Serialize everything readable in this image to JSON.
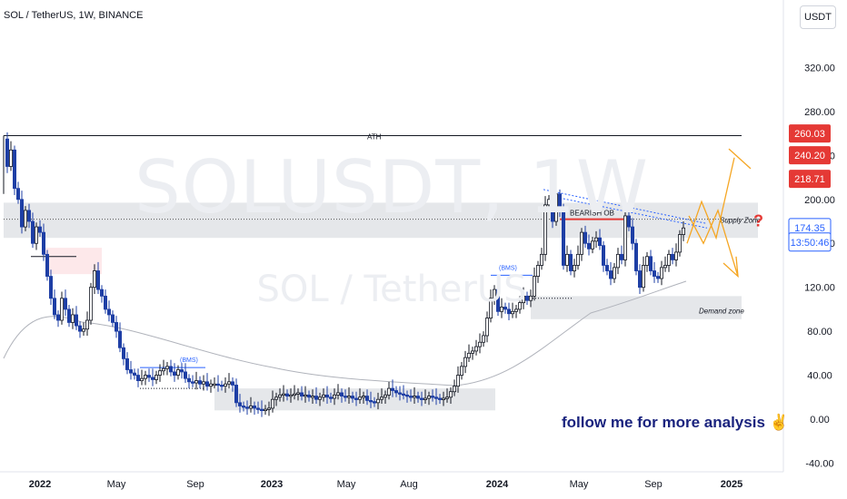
{
  "header": {
    "title": "SOL / TetherUS, 1W, BINANCE"
  },
  "watermark": {
    "symbol": "SOLUSDT, 1W",
    "pair": "SOL / TetherUS"
  },
  "currency_button": "USDT",
  "follow_text": "follow me for more analysis ✌",
  "colors": {
    "up": "#131722",
    "down": "#1e3fa5",
    "zone": "#dcdfe3",
    "arrow": "#f5a623",
    "red": "#e53935",
    "blue_label": "#2962ff"
  },
  "chart_data": {
    "type": "candlestick",
    "title": "SOL / TetherUS, 1W, BINANCE",
    "ylim": [
      -40,
      340
    ],
    "y_ticks": [
      -40,
      0,
      40,
      80,
      120,
      160,
      200,
      240,
      280,
      320
    ],
    "y_tick_labels": [
      "-40.00",
      "0.00",
      "40.00",
      "80.00",
      "120.00",
      "160.00",
      "200.00",
      "240.00",
      "280.00",
      "320.00"
    ],
    "x_tick_labels": [
      "2022",
      "May",
      "Sep",
      "2023",
      "May",
      "Aug",
      "2024",
      "May",
      "Sep",
      "2025"
    ],
    "price_labels": [
      {
        "text": "260.03",
        "value": 260.03,
        "bg": "#e53935"
      },
      {
        "text": "240.20",
        "value": 240.2,
        "bg": "#e53935"
      },
      {
        "text": "218.71",
        "value": 218.71,
        "bg": "#e53935"
      },
      {
        "text": "174.35",
        "value": 174.35,
        "bg": "#2962ff",
        "outline": true
      },
      {
        "text": "13:50:46",
        "value": 161.2,
        "bg": "#2962ff",
        "outline": true
      }
    ],
    "annotations": {
      "ath": "ATH",
      "supply_zone": "Supply Zone",
      "question": "?",
      "bearish_ob": "BEARISH OB",
      "demand_zone": "Demand zone",
      "bms_1": "(BMS)",
      "bms_2": "(BMS)"
    },
    "levels": {
      "ath": 258,
      "supply_zone": [
        165,
        197
      ],
      "supply_mid": 182,
      "demand_zone": [
        91,
        112
      ],
      "bottom_zone_1": [
        8,
        28
      ],
      "bms_1": 47,
      "bms_2": 131
    }
  }
}
